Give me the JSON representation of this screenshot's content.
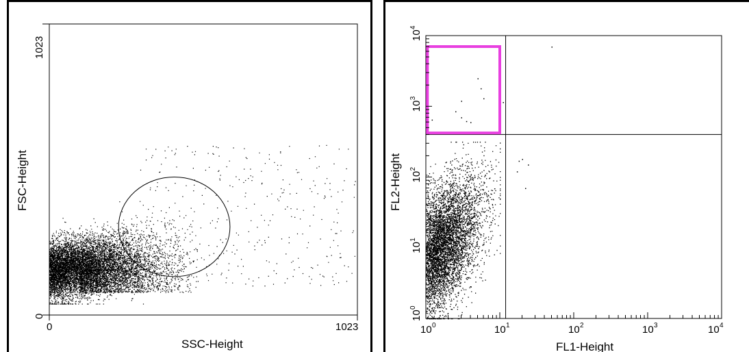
{
  "chart_data": [
    {
      "type": "scatter",
      "panel": "left",
      "xlabel": "SSC-Height",
      "ylabel": "FSC-Height",
      "xlim": [
        0,
        1023
      ],
      "ylim": [
        0,
        1023
      ],
      "x_ticks": [
        "0",
        "1023"
      ],
      "y_ticks": [
        "0",
        "1023"
      ],
      "grid": false,
      "gate": {
        "shape": "ellipse",
        "cx": 415,
        "cy": 310,
        "rx": 185,
        "ry": 175
      },
      "populations": [
        {
          "name": "",
          "count": 9000,
          "x_range": [
            0,
            320
          ],
          "y_range": [
            40,
            270
          ],
          "density": "dense core"
        },
        {
          "name": "",
          "count": 3000,
          "x_range": [
            100,
            500
          ],
          "y_range": [
            80,
            400
          ],
          "density": "moderate"
        },
        {
          "name": "",
          "count": 350,
          "x_range": [
            300,
            1023
          ],
          "y_range": [
            100,
            600
          ],
          "density": "sparse"
        }
      ]
    },
    {
      "type": "scatter",
      "panel": "right",
      "xlabel": "FL1-Height",
      "ylabel": "FL2-Height",
      "xscale": "log",
      "yscale": "log",
      "xlim": [
        1,
        10000
      ],
      "ylim": [
        1,
        10000
      ],
      "x_ticks": [
        {
          "base": "10",
          "exp": "0"
        },
        {
          "base": "10",
          "exp": "1"
        },
        {
          "base": "10",
          "exp": "2"
        },
        {
          "base": "10",
          "exp": "3"
        },
        {
          "base": "10",
          "exp": "4"
        }
      ],
      "y_ticks": [
        {
          "base": "10",
          "exp": "0"
        },
        {
          "base": "10",
          "exp": "1"
        },
        {
          "base": "10",
          "exp": "2"
        },
        {
          "base": "10",
          "exp": "3"
        },
        {
          "base": "10",
          "exp": "4"
        }
      ],
      "grid": false,
      "quadrant_lines": {
        "x": 12,
        "y": 400
      },
      "gate": {
        "shape": "rectangle",
        "color": "#e840e0",
        "x_range": [
          1.05,
          10
        ],
        "y_range": [
          420,
          7000
        ]
      },
      "populations": [
        {
          "name": "",
          "count": 9000,
          "x_range": [
            1,
            10
          ],
          "y_range": [
            1,
            300
          ],
          "density": "dense core"
        }
      ],
      "sparse_points": [
        [
          50,
          7000
        ],
        [
          5,
          2500
        ],
        [
          5.5,
          1800
        ],
        [
          6,
          1300
        ],
        [
          3,
          1200
        ],
        [
          2.5,
          850
        ],
        [
          3,
          700
        ],
        [
          3.5,
          620
        ],
        [
          4,
          600
        ],
        [
          1.2,
          650
        ],
        [
          11,
          1150
        ],
        [
          20,
          180
        ],
        [
          18,
          170
        ],
        [
          24,
          150
        ],
        [
          17,
          120
        ],
        [
          22,
          70
        ]
      ]
    }
  ],
  "colors": {
    "points": "#000000",
    "gate_rect": "#e840e0",
    "gate_ellipse": "#000000"
  }
}
